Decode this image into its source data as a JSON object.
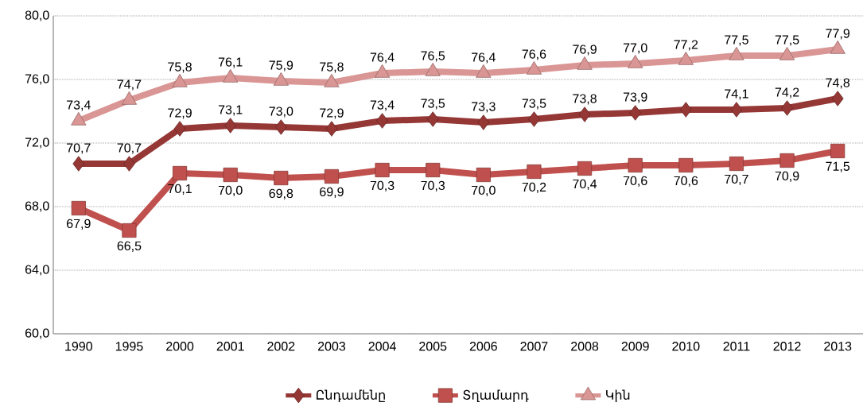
{
  "chart_data": {
    "type": "line",
    "categories": [
      "1990",
      "1995",
      "2000",
      "2001",
      "2002",
      "2003",
      "2004",
      "2005",
      "2006",
      "2007",
      "2008",
      "2009",
      "2010",
      "2011",
      "2012",
      "2013"
    ],
    "series": [
      {
        "name": "Ընդամենը",
        "color": "#953735",
        "marker": "diamond",
        "values": [
          70.7,
          70.7,
          72.9,
          73.1,
          73.0,
          72.9,
          73.4,
          73.5,
          73.3,
          73.5,
          73.8,
          73.9,
          74.1,
          74.1,
          74.2,
          74.8
        ],
        "value_labels": [
          "70,7",
          "70,7",
          "72,9",
          "73,1",
          "73,0",
          "72,9",
          "73,4",
          "73,5",
          "73,3",
          "73,5",
          "73,8",
          "73,9",
          null,
          "74,1",
          "74,2",
          "74,8"
        ]
      },
      {
        "name": "Տղամարդ",
        "color": "#c0504d",
        "marker": "square",
        "values": [
          67.9,
          66.5,
          70.1,
          70.0,
          69.8,
          69.9,
          70.3,
          70.3,
          70.0,
          70.2,
          70.4,
          70.6,
          70.6,
          70.7,
          70.9,
          71.5
        ],
        "value_labels": [
          "67,9",
          "66,5",
          "70,1",
          "70,0",
          "69,8",
          "69,9",
          "70,3",
          "70,3",
          "70,0",
          "70,2",
          "70,4",
          "70,6",
          "70,6",
          "70,7",
          "70,9",
          "71,5"
        ]
      },
      {
        "name": "Կին",
        "color": "#d99694",
        "marker": "triangle",
        "values": [
          73.4,
          74.7,
          75.8,
          76.1,
          75.9,
          75.8,
          76.4,
          76.5,
          76.4,
          76.6,
          76.9,
          77.0,
          77.2,
          77.5,
          77.5,
          77.9
        ],
        "value_labels": [
          "73,4",
          "74,7",
          "75,8",
          "76,1",
          "75,9",
          "75,8",
          "76,4",
          "76,5",
          "76,4",
          "76,6",
          "76,9",
          "77,0",
          "77,2",
          "77,5",
          "77,5",
          "77,9"
        ]
      }
    ],
    "ylim": [
      60,
      80
    ],
    "yticks": [
      {
        "value": 60,
        "label": "60,0"
      },
      {
        "value": 64,
        "label": "64,0"
      },
      {
        "value": 68,
        "label": "68,0"
      },
      {
        "value": 72,
        "label": "72,0"
      },
      {
        "value": 76,
        "label": "76,0"
      },
      {
        "value": 80,
        "label": "80,0"
      }
    ],
    "grid": "y",
    "legend": "bottom",
    "line_style": "solid"
  }
}
